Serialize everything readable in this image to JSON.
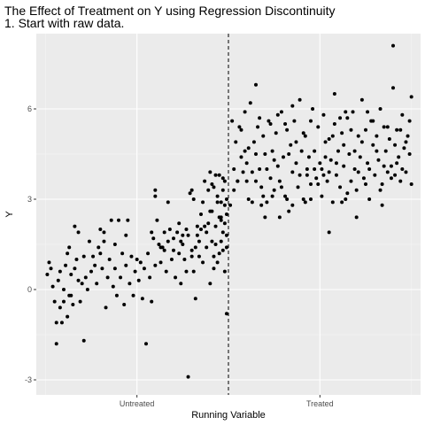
{
  "chart_data": {
    "type": "scatter",
    "title": "The Effect of Treatment on Y using Regression Discontinuity",
    "subtitle": "1. Start with raw data.",
    "xlabel": "Running Variable",
    "ylabel": "Y",
    "xlim": [
      -1.05,
      1.05
    ],
    "ylim": [
      -3.5,
      8.5
    ],
    "x_tick_values": [
      -0.5,
      0.5
    ],
    "x_tick_labels": [
      "Untreated",
      "Treated"
    ],
    "y_ticks": [
      -3,
      0,
      3,
      6
    ],
    "cutoff": 0,
    "cutoff_style": "dashed vertical line",
    "background": "#ebebeb",
    "grid": true,
    "legend": "none",
    "point_color": "#000000",
    "points_untreated": [
      [
        -0.99,
        0.5
      ],
      [
        -0.98,
        0.9
      ],
      [
        -0.97,
        0.7
      ],
      [
        -0.96,
        0.1
      ],
      [
        -0.95,
        -0.4
      ],
      [
        -0.94,
        -1.8
      ],
      [
        -0.94,
        -1.1
      ],
      [
        -0.93,
        0.3
      ],
      [
        -0.92,
        -0.6
      ],
      [
        -0.91,
        -1.1
      ],
      [
        -0.9,
        -0.4
      ],
      [
        -0.9,
        0.0
      ],
      [
        -0.89,
        0.8
      ],
      [
        -0.88,
        1.2
      ],
      [
        -0.88,
        -0.9
      ],
      [
        -0.87,
        1.4
      ],
      [
        -0.86,
        -0.2
      ],
      [
        -0.86,
        0.5
      ],
      [
        -0.85,
        -0.5
      ],
      [
        -0.84,
        0.7
      ],
      [
        -0.84,
        2.1
      ],
      [
        -0.83,
        1.0
      ],
      [
        -0.82,
        1.9
      ],
      [
        -0.81,
        -0.4
      ],
      [
        -0.8,
        0.2
      ],
      [
        -0.79,
        1.1
      ],
      [
        -0.79,
        -1.7
      ],
      [
        -0.78,
        0.4
      ],
      [
        -0.77,
        0.0
      ],
      [
        -0.76,
        1.6
      ],
      [
        -0.75,
        0.6
      ],
      [
        -0.74,
        1.1
      ],
      [
        -0.73,
        0.8
      ],
      [
        -0.72,
        0.2
      ],
      [
        -0.71,
        1.4
      ],
      [
        -0.7,
        1.2
      ],
      [
        -0.7,
        2.0
      ],
      [
        -0.69,
        0.7
      ],
      [
        -0.68,
        1.6
      ],
      [
        -0.67,
        -0.6
      ],
      [
        -0.66,
        0.4
      ],
      [
        -0.65,
        1.0
      ],
      [
        -0.64,
        2.3
      ],
      [
        -0.63,
        0.1
      ],
      [
        -0.62,
        0.7
      ],
      [
        -0.61,
        -0.2
      ],
      [
        -0.6,
        2.3
      ],
      [
        -0.59,
        0.4
      ],
      [
        -0.58,
        1.2
      ],
      [
        -0.57,
        -0.5
      ],
      [
        -0.56,
        0.8
      ],
      [
        -0.55,
        2.3
      ],
      [
        -0.54,
        0.2
      ],
      [
        -0.53,
        1.1
      ],
      [
        -0.52,
        -0.2
      ],
      [
        -0.51,
        0.6
      ],
      [
        -0.5,
        1.0
      ],
      [
        -0.49,
        0.3
      ],
      [
        -0.48,
        0.9
      ],
      [
        -0.47,
        -0.3
      ],
      [
        -0.46,
        0.7
      ],
      [
        -0.45,
        -1.8
      ],
      [
        -0.44,
        1.2
      ],
      [
        -0.43,
        0.4
      ],
      [
        -0.42,
        -0.4
      ],
      [
        -0.41,
        1.7
      ],
      [
        -0.4,
        0.8
      ],
      [
        -0.4,
        3.3
      ],
      [
        -0.4,
        3.1
      ],
      [
        -0.39,
        2.3
      ],
      [
        -0.38,
        1.5
      ],
      [
        -0.37,
        0.9
      ],
      [
        -0.36,
        1.4
      ],
      [
        -0.35,
        1.9
      ],
      [
        -0.34,
        0.6
      ],
      [
        -0.33,
        1.6
      ],
      [
        -0.32,
        2.0
      ],
      [
        -0.31,
        1.0
      ],
      [
        -0.3,
        1.7
      ],
      [
        -0.29,
        0.4
      ],
      [
        -0.28,
        1.9
      ],
      [
        -0.27,
        1.2
      ],
      [
        -0.26,
        0.2
      ],
      [
        -0.25,
        1.5
      ],
      [
        -0.24,
        1.0
      ],
      [
        -0.23,
        0.6
      ],
      [
        -0.22,
        1.8
      ],
      [
        -0.21,
        3.2
      ],
      [
        -0.2,
        3.3
      ],
      [
        -0.2,
        1.3
      ],
      [
        -0.19,
        0.6
      ],
      [
        -0.18,
        -0.3
      ],
      [
        -0.17,
        1.8
      ],
      [
        -0.16,
        1.1
      ],
      [
        -0.15,
        2.5
      ],
      [
        -0.14,
        0.9
      ],
      [
        -0.13,
        2.1
      ],
      [
        -0.12,
        1.4
      ],
      [
        -0.11,
        3.3
      ],
      [
        -0.1,
        0.2
      ],
      [
        -0.1,
        3.9
      ],
      [
        -0.09,
        2.6
      ],
      [
        -0.08,
        3.4
      ],
      [
        -0.07,
        1.5
      ],
      [
        -0.06,
        2.9
      ],
      [
        -0.05,
        1.2
      ],
      [
        -0.04,
        2.3
      ],
      [
        -0.03,
        3.7
      ],
      [
        -0.02,
        0.6
      ],
      [
        -0.01,
        1.8
      ],
      [
        -0.15,
        2.0
      ],
      [
        -0.14,
        2.9
      ],
      [
        -0.13,
        3.6
      ],
      [
        -0.12,
        1.9
      ],
      [
        -0.1,
        2.6
      ],
      [
        -0.09,
        1.6
      ],
      [
        -0.08,
        0.7
      ],
      [
        -0.07,
        2.1
      ],
      [
        -0.06,
        3.1
      ],
      [
        -0.05,
        2.4
      ],
      [
        -0.04,
        1.6
      ],
      [
        -0.03,
        3.3
      ],
      [
        -0.02,
        2.8
      ],
      [
        -0.01,
        1.4
      ],
      [
        -0.09,
        3.5
      ],
      [
        -0.08,
        1.1
      ],
      [
        -0.06,
        0.9
      ],
      [
        -0.05,
        3.8
      ],
      [
        -0.04,
        2.9
      ],
      [
        -0.03,
        1.9
      ],
      [
        -0.02,
        2.2
      ],
      [
        -0.01,
        3.0
      ],
      [
        -0.07,
        3.8
      ],
      [
        -0.04,
        2.4
      ],
      [
        -0.03,
        1.3
      ],
      [
        -0.02,
        3.6
      ],
      [
        -0.01,
        2.5
      ],
      [
        -0.11,
        2.2
      ],
      [
        -0.16,
        1.6
      ],
      [
        -0.25,
        1.8
      ],
      [
        -0.27,
        2.2
      ],
      [
        -0.3,
        1.3
      ],
      [
        -0.22,
        -2.9
      ],
      [
        -0.17,
        2.1
      ],
      [
        -0.26,
        1.6
      ],
      [
        -0.2,
        1.1
      ],
      [
        -0.23,
        2.0
      ],
      [
        -0.18,
        1.4
      ],
      [
        -0.01,
        -0.8
      ],
      [
        -0.19,
        3.0
      ],
      [
        -0.35,
        1.3
      ],
      [
        -0.33,
        2.9
      ],
      [
        -0.37,
        1.4
      ],
      [
        -0.42,
        1.9
      ],
      [
        -0.56,
        1.8
      ],
      [
        -0.62,
        1.5
      ],
      [
        -0.68,
        1.9
      ],
      [
        -0.82,
        0.3
      ],
      [
        -0.87,
        -0.2
      ],
      [
        -0.92,
        0.6
      ]
    ],
    "points_treated": [
      [
        0.01,
        2.8
      ],
      [
        0.02,
        5.6
      ],
      [
        0.03,
        3.3
      ],
      [
        0.04,
        4.9
      ],
      [
        0.05,
        3.6
      ],
      [
        0.06,
        5.4
      ],
      [
        0.07,
        4.4
      ],
      [
        0.08,
        3.9
      ],
      [
        0.09,
        5.9
      ],
      [
        0.1,
        4.2
      ],
      [
        0.11,
        3.0
      ],
      [
        0.12,
        6.2
      ],
      [
        0.13,
        2.9
      ],
      [
        0.14,
        4.9
      ],
      [
        0.15,
        3.6
      ],
      [
        0.16,
        5.4
      ],
      [
        0.17,
        4.0
      ],
      [
        0.18,
        3.4
      ],
      [
        0.19,
        5.1
      ],
      [
        0.2,
        4.5
      ],
      [
        0.21,
        2.9
      ],
      [
        0.22,
        5.6
      ],
      [
        0.23,
        3.7
      ],
      [
        0.24,
        4.6
      ],
      [
        0.25,
        3.3
      ],
      [
        0.26,
        5.2
      ],
      [
        0.27,
        4.1
      ],
      [
        0.28,
        3.6
      ],
      [
        0.29,
        5.9
      ],
      [
        0.3,
        4.4
      ],
      [
        0.31,
        3.1
      ],
      [
        0.32,
        5.3
      ],
      [
        0.33,
        2.6
      ],
      [
        0.34,
        4.8
      ],
      [
        0.35,
        3.9
      ],
      [
        0.36,
        5.6
      ],
      [
        0.37,
        4.2
      ],
      [
        0.38,
        3.4
      ],
      [
        0.39,
        6.3
      ],
      [
        0.4,
        4.6
      ],
      [
        0.41,
        3.0
      ],
      [
        0.42,
        5.1
      ],
      [
        0.43,
        3.8
      ],
      [
        0.44,
        4.4
      ],
      [
        0.45,
        3.5
      ],
      [
        0.46,
        6.0
      ],
      [
        0.47,
        4.0
      ],
      [
        0.48,
        3.7
      ],
      [
        0.49,
        5.4
      ],
      [
        0.5,
        4.2
      ],
      [
        0.51,
        3.1
      ],
      [
        0.52,
        5.8
      ],
      [
        0.53,
        4.4
      ],
      [
        0.54,
        3.6
      ],
      [
        0.55,
        5.0
      ],
      [
        0.56,
        4.3
      ],
      [
        0.57,
        2.9
      ],
      [
        0.58,
        5.5
      ],
      [
        0.59,
        3.8
      ],
      [
        0.6,
        4.6
      ],
      [
        0.61,
        3.4
      ],
      [
        0.62,
        5.2
      ],
      [
        0.63,
        4.1
      ],
      [
        0.64,
        3.0
      ],
      [
        0.65,
        5.7
      ],
      [
        0.66,
        4.5
      ],
      [
        0.67,
        3.6
      ],
      [
        0.68,
        5.9
      ],
      [
        0.69,
        4.0
      ],
      [
        0.7,
        3.3
      ],
      [
        0.71,
        5.1
      ],
      [
        0.72,
        4.4
      ],
      [
        0.73,
        6.3
      ],
      [
        0.74,
        3.7
      ],
      [
        0.75,
        5.3
      ],
      [
        0.76,
        4.2
      ],
      [
        0.77,
        3.0
      ],
      [
        0.78,
        5.6
      ],
      [
        0.79,
        4.8
      ],
      [
        0.8,
        3.8
      ],
      [
        0.81,
        5.1
      ],
      [
        0.82,
        4.3
      ],
      [
        0.83,
        6.0
      ],
      [
        0.84,
        3.5
      ],
      [
        0.85,
        5.4
      ],
      [
        0.86,
        4.6
      ],
      [
        0.87,
        3.9
      ],
      [
        0.88,
        5.0
      ],
      [
        0.89,
        4.1
      ],
      [
        0.9,
        6.7
      ],
      [
        0.9,
        8.1
      ],
      [
        0.91,
        3.8
      ],
      [
        0.92,
        5.3
      ],
      [
        0.93,
        4.4
      ],
      [
        0.94,
        3.6
      ],
      [
        0.95,
        5.8
      ],
      [
        0.96,
        4.7
      ],
      [
        0.97,
        3.9
      ],
      [
        0.98,
        5.1
      ],
      [
        0.99,
        4.5
      ],
      [
        1.0,
        3.5
      ],
      [
        1.0,
        6.4
      ],
      [
        0.99,
        5.6
      ],
      [
        0.97,
        4.9
      ],
      [
        0.95,
        4.0
      ],
      [
        0.94,
        5.3
      ],
      [
        0.92,
        4.2
      ],
      [
        0.91,
        4.8
      ],
      [
        0.89,
        3.7
      ],
      [
        0.87,
        5.4
      ],
      [
        0.85,
        4.1
      ],
      [
        0.83,
        3.3
      ],
      [
        0.81,
        4.6
      ],
      [
        0.79,
        5.6
      ],
      [
        0.77,
        4.0
      ],
      [
        0.75,
        3.5
      ],
      [
        0.73,
        4.9
      ],
      [
        0.71,
        3.9
      ],
      [
        0.69,
        4.6
      ],
      [
        0.67,
        5.3
      ],
      [
        0.65,
        3.2
      ],
      [
        0.63,
        4.8
      ],
      [
        0.61,
        5.7
      ],
      [
        0.59,
        4.2
      ],
      [
        0.57,
        5.1
      ],
      [
        0.55,
        3.9
      ],
      [
        0.53,
        4.9
      ],
      [
        0.51,
        4.0
      ],
      [
        0.49,
        3.5
      ],
      [
        0.47,
        4.6
      ],
      [
        0.45,
        5.6
      ],
      [
        0.43,
        4.0
      ],
      [
        0.41,
        5.2
      ],
      [
        0.39,
        3.8
      ],
      [
        0.37,
        4.9
      ],
      [
        0.35,
        6.1
      ],
      [
        0.33,
        4.5
      ],
      [
        0.31,
        5.5
      ],
      [
        0.29,
        3.4
      ],
      [
        0.27,
        5.8
      ],
      [
        0.25,
        4.3
      ],
      [
        0.23,
        5.5
      ],
      [
        0.21,
        4.0
      ],
      [
        0.19,
        3.1
      ],
      [
        0.17,
        5.7
      ],
      [
        0.15,
        4.5
      ],
      [
        0.13,
        3.9
      ],
      [
        0.11,
        4.7
      ],
      [
        0.09,
        4.6
      ],
      [
        0.07,
        5.3
      ],
      [
        0.05,
        3.6
      ],
      [
        0.03,
        4.0
      ],
      [
        0.15,
        6.8
      ],
      [
        0.28,
        2.4
      ],
      [
        0.35,
        2.8
      ],
      [
        0.55,
        1.9
      ],
      [
        0.58,
        6.5
      ],
      [
        0.7,
        2.4
      ],
      [
        0.2,
        2.4
      ],
      [
        0.45,
        3.0
      ],
      [
        0.1,
        3.6
      ],
      [
        0.24,
        3.1
      ],
      [
        0.62,
        2.9
      ],
      [
        0.84,
        2.8
      ],
      [
        0.76,
        5.9
      ],
      [
        0.64,
        5.9
      ],
      [
        0.42,
        2.9
      ],
      [
        0.32,
        3.0
      ],
      [
        0.18,
        2.8
      ],
      [
        0.52,
        3.8
      ]
    ]
  }
}
